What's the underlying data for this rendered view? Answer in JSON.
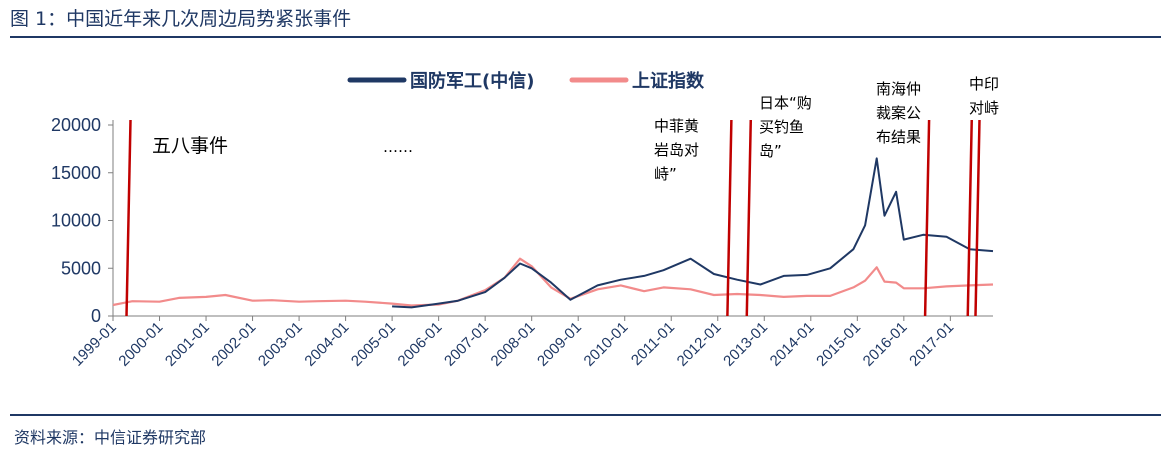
{
  "figure": {
    "title": "图 1：中国近年来几次周边局势紧张事件",
    "source": "资料来源：中信证券研究部"
  },
  "chart_data": {
    "type": "line",
    "title": "",
    "xlabel": "",
    "ylabel": "",
    "ylim": [
      0,
      20000
    ],
    "xlim": [
      "1999-01",
      "2017-12"
    ],
    "y_ticks": [
      0,
      5000,
      10000,
      15000,
      20000
    ],
    "x_ticks": [
      "1999-01",
      "2000-01",
      "2001-01",
      "2002-01",
      "2003-01",
      "2004-01",
      "2005-01",
      "2006-01",
      "2007-01",
      "2008-01",
      "2009-01",
      "2010-01",
      "2011-01",
      "2012-01",
      "2013-01",
      "2014-01",
      "2015-01",
      "2016-01",
      "2017-01"
    ],
    "grid": false,
    "legend_position": "top",
    "series": [
      {
        "name": "国防军工(中信)",
        "color": "#1f3864",
        "x": [
          "2005-01",
          "2005-06",
          "2006-01",
          "2006-06",
          "2007-01",
          "2007-06",
          "2007-10",
          "2008-01",
          "2008-06",
          "2008-11",
          "2009-06",
          "2009-12",
          "2010-06",
          "2010-11",
          "2011-06",
          "2011-12",
          "2012-06",
          "2012-12",
          "2013-06",
          "2013-12",
          "2014-06",
          "2014-12",
          "2015-03",
          "2015-06",
          "2015-08",
          "2015-11",
          "2016-01",
          "2016-06",
          "2016-12",
          "2017-06",
          "2017-12"
        ],
        "values": [
          1000,
          900,
          1300,
          1600,
          2500,
          4000,
          5500,
          5000,
          3500,
          1700,
          3200,
          3800,
          4200,
          4800,
          6000,
          4400,
          3800,
          3300,
          4200,
          4300,
          5000,
          7000,
          9500,
          16500,
          10500,
          13000,
          8000,
          8500,
          8300,
          7000,
          6800
        ]
      },
      {
        "name": "上证指数",
        "color": "#f28b8b",
        "x": [
          "1999-01",
          "1999-06",
          "2000-01",
          "2000-06",
          "2001-01",
          "2001-06",
          "2002-01",
          "2002-06",
          "2003-01",
          "2003-06",
          "2004-01",
          "2004-06",
          "2005-01",
          "2005-06",
          "2006-01",
          "2006-06",
          "2007-01",
          "2007-06",
          "2007-10",
          "2008-01",
          "2008-06",
          "2008-11",
          "2009-06",
          "2009-12",
          "2010-06",
          "2010-11",
          "2011-06",
          "2011-12",
          "2012-06",
          "2012-12",
          "2013-06",
          "2013-12",
          "2014-06",
          "2014-12",
          "2015-03",
          "2015-06",
          "2015-08",
          "2015-11",
          "2016-01",
          "2016-06",
          "2016-12",
          "2017-06",
          "2017-12"
        ],
        "values": [
          1150,
          1550,
          1500,
          1900,
          2000,
          2200,
          1600,
          1650,
          1500,
          1550,
          1600,
          1500,
          1300,
          1100,
          1200,
          1600,
          2700,
          4000,
          6000,
          5200,
          3000,
          1800,
          2800,
          3200,
          2600,
          3000,
          2800,
          2200,
          2300,
          2200,
          2000,
          2100,
          2100,
          3000,
          3700,
          5100,
          3600,
          3500,
          2900,
          2900,
          3100,
          3200,
          3300
        ]
      }
    ],
    "event_lines": [
      {
        "date": "1999-05",
        "color": "#c00000"
      },
      {
        "date": "2012-04",
        "color": "#c00000"
      },
      {
        "date": "2012-09",
        "color": "#c00000"
      },
      {
        "date": "2016-07",
        "color": "#c00000"
      },
      {
        "date": "2017-06",
        "color": "#c00000"
      },
      {
        "date": "2017-08",
        "color": "#c00000"
      }
    ],
    "annotations": [
      {
        "text": "五八事件"
      },
      {
        "text": "……"
      },
      {
        "lines": [
          "中菲黄",
          "岩岛对",
          "峙”"
        ]
      },
      {
        "lines": [
          "日本“购",
          "买钓鱼",
          "岛”"
        ]
      },
      {
        "lines": [
          "南海仲",
          "裁案公",
          "布结果"
        ]
      },
      {
        "lines": [
          "中印",
          "对峙"
        ]
      }
    ]
  }
}
